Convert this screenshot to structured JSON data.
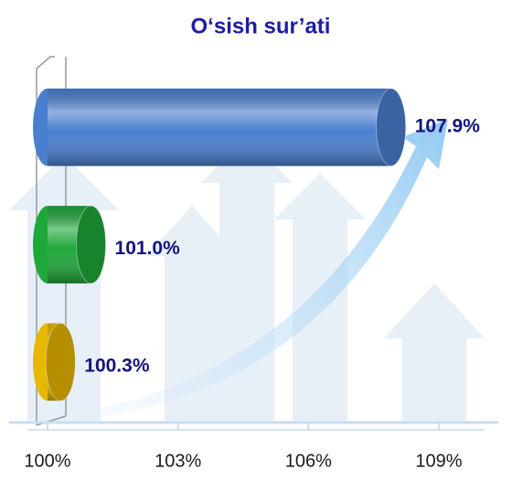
{
  "chart_data": {
    "type": "bar",
    "orientation": "horizontal",
    "title": "O‘sish sur’ati",
    "categories": [
      null,
      null,
      null
    ],
    "values": [
      107.9,
      101.0,
      100.3
    ],
    "value_labels": [
      "107.9%",
      "101.0%",
      "100.3%"
    ],
    "colors": [
      "#4a7fd0",
      "#1fa83a",
      "#e8b800"
    ],
    "xlim": [
      100,
      109
    ],
    "xticks": [
      {
        "value": 100,
        "label": "100%"
      },
      {
        "value": 103,
        "label": "103%"
      },
      {
        "value": 106,
        "label": "106%"
      },
      {
        "value": 109,
        "label": "109%"
      }
    ]
  }
}
